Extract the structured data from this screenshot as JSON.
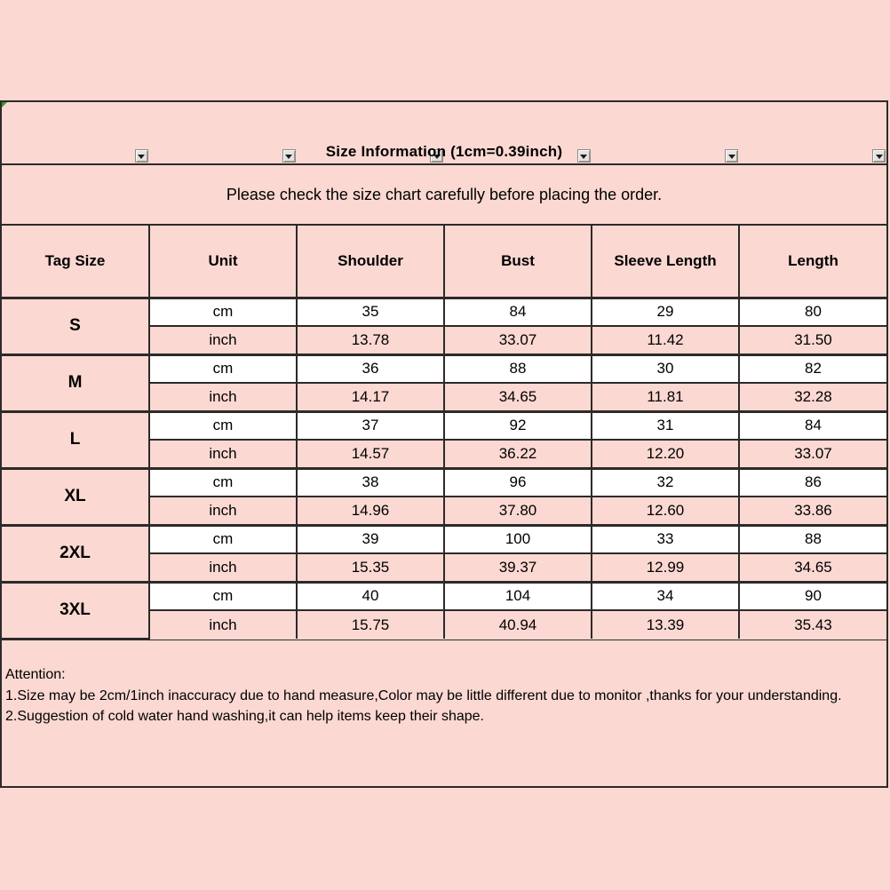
{
  "colors": {
    "background_pink": "#fbd8d2",
    "row_white": "#ffffff",
    "border_dark": "#2d2a28",
    "corner_marker_green": "#2e9e2e",
    "filter_button_face": "#e6e3df"
  },
  "notice": "Please check the size chart carefully before placing the order.",
  "filter_buttons": [
    "tag-size",
    "unit",
    "shoulder",
    "bust",
    "sleeve-length",
    "length"
  ],
  "chart_data": {
    "type": "table",
    "title": "Size Information (1cm=0.39inch)",
    "columns": [
      "Tag Size",
      "Unit",
      "Shoulder",
      "Bust",
      "Sleeve Length",
      "Length"
    ],
    "units": [
      "cm",
      "inch"
    ],
    "rows": [
      {
        "tag": "S",
        "cm": [
          "35",
          "84",
          "29",
          "80"
        ],
        "inch": [
          "13.78",
          "33.07",
          "11.42",
          "31.50"
        ]
      },
      {
        "tag": "M",
        "cm": [
          "36",
          "88",
          "30",
          "82"
        ],
        "inch": [
          "14.17",
          "34.65",
          "11.81",
          "32.28"
        ]
      },
      {
        "tag": "L",
        "cm": [
          "37",
          "92",
          "31",
          "84"
        ],
        "inch": [
          "14.57",
          "36.22",
          "12.20",
          "33.07"
        ]
      },
      {
        "tag": "XL",
        "cm": [
          "38",
          "96",
          "32",
          "86"
        ],
        "inch": [
          "14.96",
          "37.80",
          "12.60",
          "33.86"
        ]
      },
      {
        "tag": "2XL",
        "cm": [
          "39",
          "100",
          "33",
          "88"
        ],
        "inch": [
          "15.35",
          "39.37",
          "12.99",
          "34.65"
        ]
      },
      {
        "tag": "3XL",
        "cm": [
          "40",
          "104",
          "34",
          "90"
        ],
        "inch": [
          "15.75",
          "40.94",
          "13.39",
          "35.43"
        ]
      }
    ]
  },
  "attention": {
    "heading": "Attention:",
    "lines": [
      "1.Size may be 2cm/1inch inaccuracy due to hand measure,Color may be little different due to monitor ,thanks for your understanding.",
      "2.Suggestion of cold water hand washing,it can help items keep their shape."
    ]
  }
}
